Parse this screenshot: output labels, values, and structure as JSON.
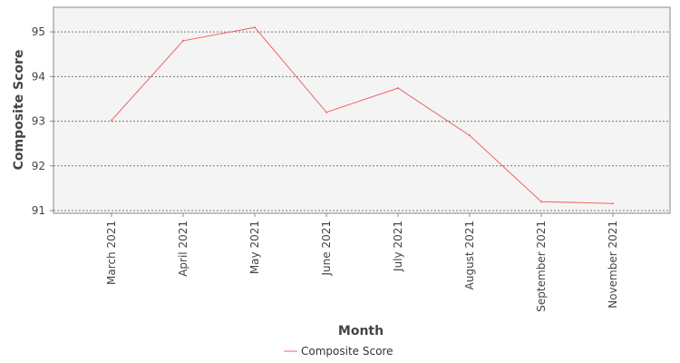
{
  "chart_data": {
    "type": "line",
    "title": "",
    "xlabel": "Month",
    "ylabel": "Composite Score",
    "categories": [
      "March 2021",
      "April 2021",
      "May 2021",
      "June 2021",
      "July 2021",
      "August 2021",
      "September 2021",
      "November 2021"
    ],
    "series": [
      {
        "name": "Composite Score",
        "color": "#f06464",
        "values": [
          93.02,
          94.8,
          95.1,
          93.2,
          93.74,
          92.68,
          91.2,
          91.16
        ]
      }
    ],
    "y_ticks": [
      "91",
      "92",
      "93",
      "94",
      "95"
    ],
    "ylim": [
      90.94,
      95.55
    ],
    "grid": true,
    "legend_position": "bottom-center"
  }
}
